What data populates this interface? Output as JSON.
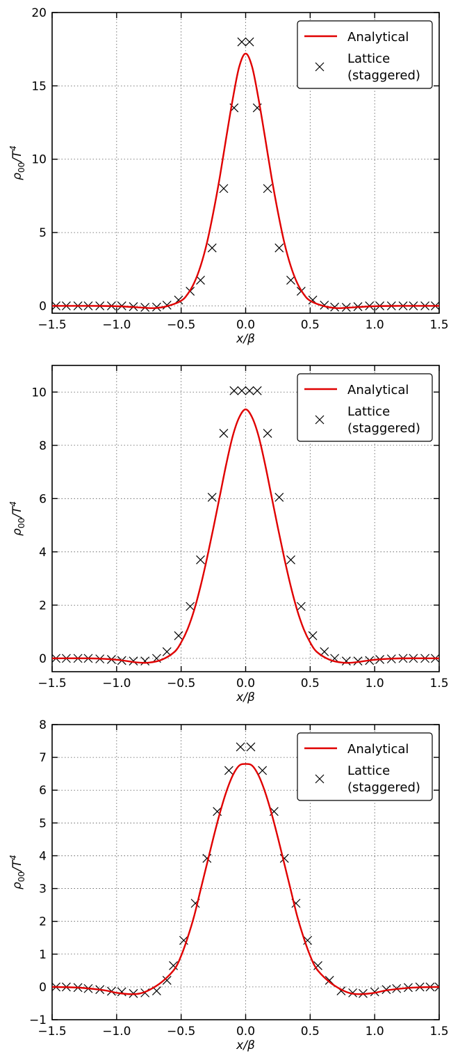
{
  "chart_data": [
    {
      "type": "line",
      "xlabel": "x/β",
      "ylabel": "ρ00/T4",
      "xlim": [
        -1.5,
        1.5
      ],
      "ylim": [
        -0.5,
        20
      ],
      "xticks": [
        -1.5,
        -1.0,
        -0.5,
        0.0,
        0.5,
        1.0,
        1.5
      ],
      "xtick_labels": [
        "−1.5",
        "−1.0",
        "−0.5",
        "0.0",
        "0.5",
        "1.0",
        "1.5"
      ],
      "yticks": [
        0,
        5,
        10,
        15,
        20
      ],
      "ytick_labels": [
        "0",
        "5",
        "10",
        "15",
        "20"
      ],
      "grid": true,
      "legend_position": "top-right",
      "series": [
        {
          "name": "Analytical",
          "style": "line",
          "color": "#e00000",
          "x": [
            -1.5,
            -1.2,
            -1.0,
            -0.8,
            -0.7,
            -0.6,
            -0.5,
            -0.45,
            -0.4,
            -0.35,
            -0.3,
            -0.25,
            -0.2,
            -0.15,
            -0.1,
            -0.05,
            0.0,
            0.05,
            0.1,
            0.15,
            0.2,
            0.25,
            0.3,
            0.35,
            0.4,
            0.45,
            0.5,
            0.6,
            0.7,
            0.8,
            1.0,
            1.2,
            1.5
          ],
          "y": [
            0.0,
            0.0,
            -0.02,
            -0.12,
            -0.15,
            0.0,
            0.35,
            0.8,
            1.55,
            2.7,
            4.3,
            6.4,
            8.8,
            11.5,
            14.1,
            16.3,
            17.2,
            16.3,
            14.1,
            11.5,
            8.8,
            6.4,
            4.3,
            2.7,
            1.55,
            0.8,
            0.35,
            0.0,
            -0.15,
            -0.12,
            -0.02,
            0.0,
            0.0
          ]
        },
        {
          "name": "Lattice (staggered)",
          "style": "markers",
          "color": "#000000",
          "x": [
            -1.47,
            -1.39,
            -1.3,
            -1.22,
            -1.13,
            -1.04,
            -0.96,
            -0.87,
            -0.78,
            -0.69,
            -0.61,
            -0.52,
            -0.43,
            -0.35,
            -0.26,
            -0.17,
            -0.09,
            -0.03,
            0.03,
            0.09,
            0.17,
            0.26,
            0.35,
            0.43,
            0.52,
            0.61,
            0.69,
            0.78,
            0.87,
            0.96,
            1.04,
            1.13,
            1.22,
            1.3,
            1.39,
            1.47
          ],
          "y": [
            0.0,
            0.0,
            0.0,
            0.0,
            0.0,
            0.0,
            0.0,
            -0.05,
            -0.1,
            -0.08,
            0.05,
            0.4,
            1.0,
            1.75,
            3.95,
            8.0,
            13.5,
            18.0,
            18.0,
            13.5,
            8.0,
            3.95,
            1.75,
            1.0,
            0.4,
            0.05,
            -0.08,
            -0.1,
            -0.05,
            0.0,
            0.0,
            0.0,
            0.0,
            0.0,
            0.0,
            0.0
          ]
        }
      ],
      "legend": {
        "line_label": "Analytical",
        "marker_label_1": "Lattice",
        "marker_label_2": "(staggered)"
      }
    },
    {
      "type": "line",
      "xlabel": "x/β",
      "ylabel": "ρ00/T4",
      "xlim": [
        -1.5,
        1.5
      ],
      "ylim": [
        -0.5,
        11
      ],
      "xticks": [
        -1.5,
        -1.0,
        -0.5,
        0.0,
        0.5,
        1.0,
        1.5
      ],
      "xtick_labels": [
        "−1.5",
        "−1.0",
        "−0.5",
        "0.0",
        "0.5",
        "1.0",
        "1.5"
      ],
      "yticks": [
        0,
        2,
        4,
        6,
        8,
        10
      ],
      "ytick_labels": [
        "0",
        "2",
        "4",
        "6",
        "8",
        "10"
      ],
      "grid": true,
      "legend_position": "top-right",
      "series": [
        {
          "name": "Analytical",
          "style": "line",
          "color": "#e00000",
          "x": [
            -1.5,
            -1.2,
            -1.0,
            -0.85,
            -0.75,
            -0.65,
            -0.55,
            -0.5,
            -0.45,
            -0.4,
            -0.35,
            -0.3,
            -0.25,
            -0.2,
            -0.15,
            -0.1,
            -0.05,
            0.0,
            0.05,
            0.1,
            0.15,
            0.2,
            0.25,
            0.3,
            0.35,
            0.4,
            0.45,
            0.5,
            0.55,
            0.65,
            0.75,
            0.85,
            1.0,
            1.2,
            1.5
          ],
          "y": [
            0.0,
            0.0,
            -0.05,
            -0.15,
            -0.16,
            -0.05,
            0.25,
            0.6,
            1.1,
            1.8,
            2.7,
            3.75,
            4.9,
            6.1,
            7.3,
            8.35,
            9.05,
            9.35,
            9.05,
            8.35,
            7.3,
            6.1,
            4.9,
            3.75,
            2.7,
            1.8,
            1.1,
            0.6,
            0.25,
            -0.05,
            -0.16,
            -0.15,
            -0.05,
            0.0,
            0.0
          ]
        },
        {
          "name": "Lattice (staggered)",
          "style": "markers",
          "color": "#000000",
          "x": [
            -1.47,
            -1.39,
            -1.3,
            -1.22,
            -1.13,
            -1.04,
            -0.96,
            -0.87,
            -0.78,
            -0.69,
            -0.61,
            -0.52,
            -0.43,
            -0.35,
            -0.26,
            -0.17,
            -0.09,
            -0.03,
            0.03,
            0.09,
            0.17,
            0.26,
            0.35,
            0.43,
            0.52,
            0.61,
            0.69,
            0.78,
            0.87,
            0.96,
            1.04,
            1.13,
            1.22,
            1.3,
            1.39,
            1.47
          ],
          "y": [
            0.0,
            0.0,
            0.0,
            0.0,
            -0.02,
            -0.04,
            -0.08,
            -0.1,
            -0.1,
            0.0,
            0.25,
            0.85,
            1.95,
            3.7,
            6.05,
            8.45,
            10.05,
            10.05,
            10.05,
            10.05,
            8.45,
            6.05,
            3.7,
            1.95,
            0.85,
            0.25,
            0.0,
            -0.1,
            -0.1,
            -0.08,
            -0.04,
            -0.02,
            0.0,
            0.0,
            0.0,
            0.0
          ]
        }
      ],
      "legend": {
        "line_label": "Analytical",
        "marker_label_1": "Lattice",
        "marker_label_2": "(staggered)"
      }
    },
    {
      "type": "line",
      "xlabel": "x/β",
      "ylabel": "ρ00/T4",
      "xlim": [
        -1.5,
        1.5
      ],
      "ylim": [
        -1,
        8
      ],
      "xticks": [
        -1.5,
        -1.0,
        -0.5,
        0.0,
        0.5,
        1.0,
        1.5
      ],
      "xtick_labels": [
        "−1.5",
        "−1.0",
        "−0.5",
        "0.0",
        "0.5",
        "1.0",
        "1.5"
      ],
      "yticks": [
        -1,
        0,
        1,
        2,
        3,
        4,
        5,
        6,
        7,
        8
      ],
      "ytick_labels": [
        "−1",
        "0",
        "1",
        "2",
        "3",
        "4",
        "5",
        "6",
        "7",
        "8"
      ],
      "grid": true,
      "legend_position": "top-right",
      "series": [
        {
          "name": "Analytical",
          "style": "line",
          "color": "#e00000",
          "x": [
            -1.5,
            -1.3,
            -1.1,
            -1.0,
            -0.9,
            -0.82,
            -0.75,
            -0.65,
            -0.55,
            -0.5,
            -0.45,
            -0.4,
            -0.35,
            -0.3,
            -0.25,
            -0.2,
            -0.15,
            -0.1,
            -0.05,
            0.0,
            0.05,
            0.1,
            0.15,
            0.2,
            0.25,
            0.3,
            0.35,
            0.4,
            0.45,
            0.5,
            0.55,
            0.65,
            0.75,
            0.82,
            0.9,
            1.0,
            1.1,
            1.3,
            1.5
          ],
          "y": [
            0.0,
            -0.02,
            -0.1,
            -0.18,
            -0.22,
            -0.2,
            -0.1,
            0.15,
            0.55,
            0.95,
            1.5,
            2.15,
            2.95,
            3.75,
            4.55,
            5.3,
            5.95,
            6.45,
            6.75,
            6.8,
            6.75,
            6.45,
            5.95,
            5.3,
            4.55,
            3.75,
            2.95,
            2.15,
            1.5,
            0.95,
            0.55,
            0.15,
            -0.1,
            -0.2,
            -0.22,
            -0.18,
            -0.1,
            -0.02,
            0.0
          ]
        },
        {
          "name": "Lattice (staggered)",
          "style": "markers",
          "color": "#000000",
          "x": [
            -1.47,
            -1.39,
            -1.3,
            -1.22,
            -1.13,
            -1.04,
            -0.96,
            -0.87,
            -0.78,
            -0.69,
            -0.61,
            -0.56,
            -0.48,
            -0.39,
            -0.3,
            -0.22,
            -0.13,
            -0.04,
            0.04,
            0.13,
            0.22,
            0.3,
            0.39,
            0.48,
            0.56,
            0.65,
            0.74,
            0.83,
            0.91,
            1.0,
            1.09,
            1.17,
            1.26,
            1.35,
            1.43,
            1.5
          ],
          "y": [
            0.0,
            0.0,
            -0.02,
            -0.05,
            -0.08,
            -0.13,
            -0.15,
            -0.2,
            -0.18,
            -0.12,
            0.2,
            0.65,
            1.42,
            2.55,
            3.92,
            5.35,
            6.6,
            7.32,
            7.32,
            6.6,
            5.35,
            3.92,
            2.55,
            1.42,
            0.65,
            0.2,
            -0.12,
            -0.18,
            -0.2,
            -0.15,
            -0.08,
            -0.05,
            -0.02,
            0.0,
            0.0,
            0.0
          ]
        }
      ],
      "legend": {
        "line_label": "Analytical",
        "marker_label_1": "Lattice",
        "marker_label_2": "(staggered)"
      }
    }
  ]
}
